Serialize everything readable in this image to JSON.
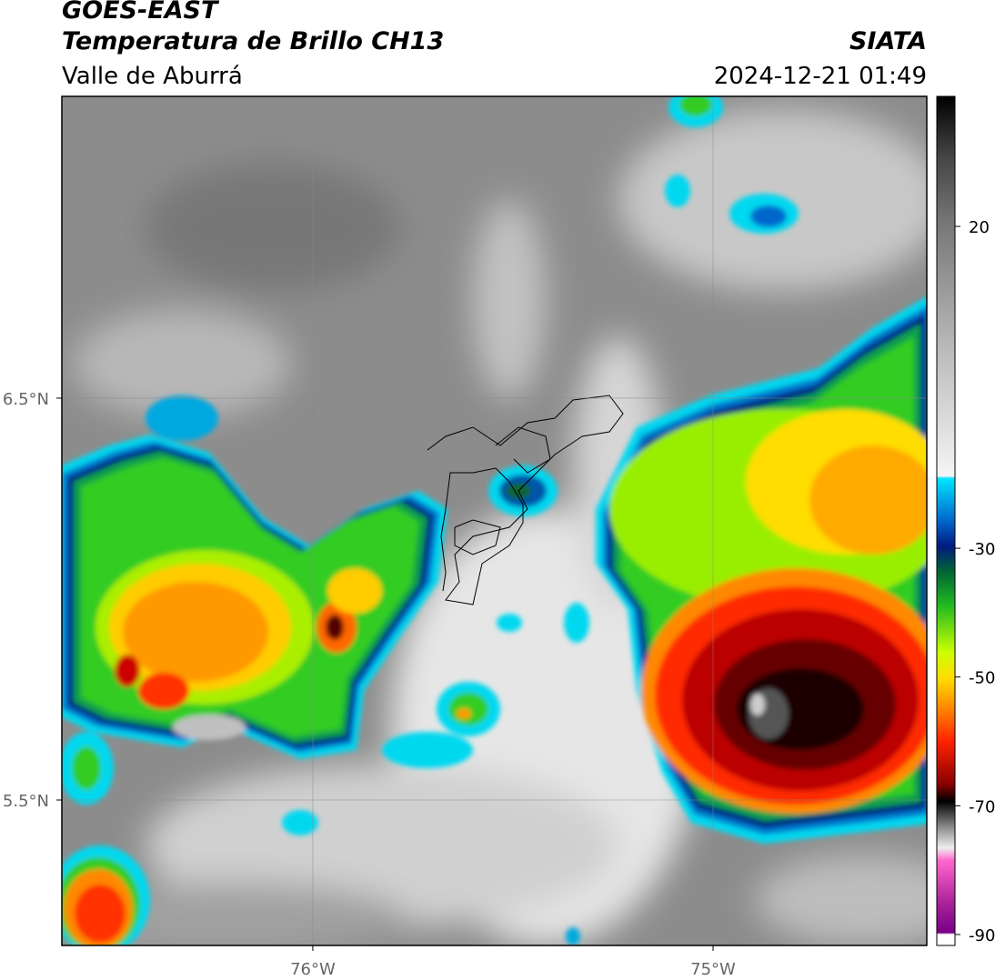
{
  "header": {
    "title": "GOES-EAST",
    "subtitle": "Temperatura de Brillo CH13",
    "region": "Valle de Aburrá",
    "source": "SIATA",
    "datetime": "2024-12-21 01:49"
  },
  "map": {
    "lonlim": [
      -76.627,
      -74.466
    ],
    "latlim": [
      5.138,
      7.251
    ],
    "lat_ticks": [
      {
        "value": 6.5,
        "label": "6.5°N"
      },
      {
        "value": 5.5,
        "label": "5.5°N"
      }
    ],
    "lon_ticks": [
      {
        "value": -76,
        "label": "76°W"
      },
      {
        "value": -75,
        "label": "75°W"
      }
    ],
    "grid": true
  },
  "colorbar": {
    "lim": [
      -91.7,
      40.2
    ],
    "ticks": [
      20,
      -30,
      -50,
      -70,
      -90
    ]
  }
}
